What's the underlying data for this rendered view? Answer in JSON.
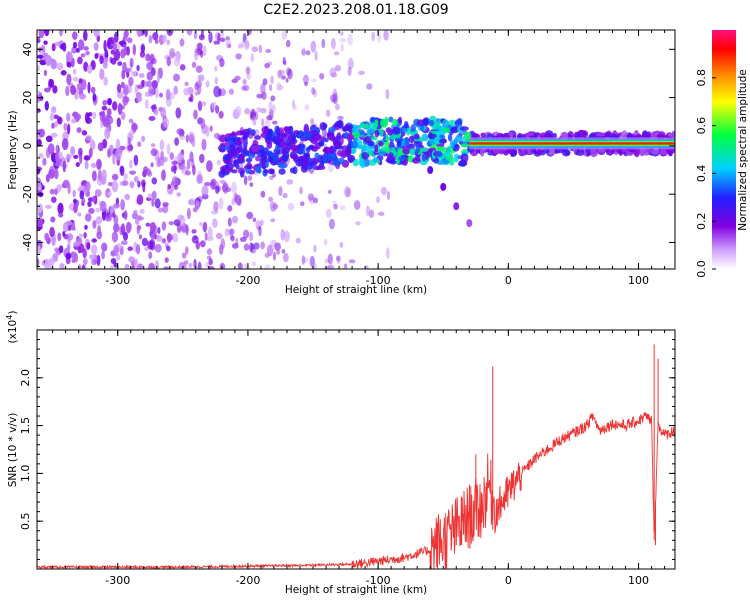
{
  "title": "C2E2.2023.208.01.18.G09",
  "chart_data": [
    {
      "type": "heatmap",
      "xlabel": "Height of straight line (km)",
      "ylabel": "Frequency (Hz)",
      "xlim": [
        -362,
        128
      ],
      "ylim": [
        -51,
        48
      ],
      "xticks": [
        -300,
        -200,
        -100,
        0,
        100
      ],
      "xtick_labels": [
        "-300",
        "-200",
        "-100",
        "0",
        "100"
      ],
      "yticks": [
        -40,
        -20,
        0,
        20,
        40
      ],
      "ytick_labels": [
        "-40",
        "-20",
        "0",
        "20",
        "40"
      ],
      "colorbar": {
        "label": "Normalized spectral amplitude",
        "range": [
          0,
          1
        ],
        "ticks": [
          0.0,
          0.2,
          0.4,
          0.6,
          0.8
        ],
        "tick_labels": [
          "0.0",
          "0.2",
          "0.4",
          "0.6",
          "0.8"
        ],
        "colors": [
          "#ffffff",
          "#a000e8",
          "#2020ff",
          "#00d0ff",
          "#00ff40",
          "#ffff00",
          "#ff8000",
          "#ff0000",
          "#ff0080"
        ]
      },
      "features": {
        "noise_region_x": [
          -362,
          -110
        ],
        "signal_trace": [
          {
            "x": -220,
            "y": -3
          },
          {
            "x": -180,
            "y": -2
          },
          {
            "x": -140,
            "y": 0
          },
          {
            "x": -100,
            "y": 2
          },
          {
            "x": -60,
            "y": 2
          },
          {
            "x": -30,
            "y": 1
          },
          {
            "x": 0,
            "y": 1
          },
          {
            "x": 50,
            "y": 1
          },
          {
            "x": 100,
            "y": 1
          },
          {
            "x": 128,
            "y": 1
          }
        ],
        "strong_line_x": [
          -30,
          128
        ],
        "strong_line_freq": 1,
        "doppler_tail": [
          {
            "x": -60,
            "y": -10
          },
          {
            "x": -50,
            "y": -17
          },
          {
            "x": -40,
            "y": -25
          },
          {
            "x": -30,
            "y": -32
          }
        ]
      }
    },
    {
      "type": "line",
      "xlabel": "Height of straight line (km)",
      "ylabel": "SNR (10 * v/v)",
      "y_multiplier_label": "(x10^4)",
      "xlim": [
        -362,
        128
      ],
      "ylim": [
        0,
        2.5
      ],
      "xticks": [
        -300,
        -200,
        -100,
        0,
        100
      ],
      "xtick_labels": [
        "-300",
        "-200",
        "-100",
        "0",
        "100"
      ],
      "yticks": [
        0.5,
        1.0,
        1.5,
        2.0
      ],
      "ytick_labels": [
        "0.5",
        "1.0",
        "1.5",
        "2.0"
      ],
      "series": [
        {
          "color": "#ee3333",
          "x": [
            -362,
            -300,
            -250,
            -200,
            -150,
            -120,
            -100,
            -80,
            -60,
            -45,
            -30,
            -20,
            -15,
            -10,
            0,
            10,
            20,
            30,
            40,
            50,
            60,
            65,
            70,
            80,
            90,
            100,
            105,
            110,
            112,
            115,
            118,
            120,
            128
          ],
          "values": [
            0.02,
            0.02,
            0.02,
            0.03,
            0.04,
            0.05,
            0.08,
            0.12,
            0.2,
            0.35,
            0.55,
            0.65,
            0.9,
            0.6,
            0.8,
            1.0,
            1.15,
            1.25,
            1.35,
            1.42,
            1.5,
            1.6,
            1.45,
            1.52,
            1.5,
            1.55,
            1.6,
            1.55,
            0.3,
            1.5,
            1.45,
            1.4,
            1.45
          ]
        }
      ],
      "spikes": [
        {
          "x": -12,
          "y": 2.12
        },
        {
          "x": -25,
          "y": 1.2
        },
        {
          "x": 112,
          "y": 2.35
        },
        {
          "x": 115,
          "y": 2.2
        },
        {
          "x": 113,
          "y": 0.25
        }
      ]
    }
  ]
}
